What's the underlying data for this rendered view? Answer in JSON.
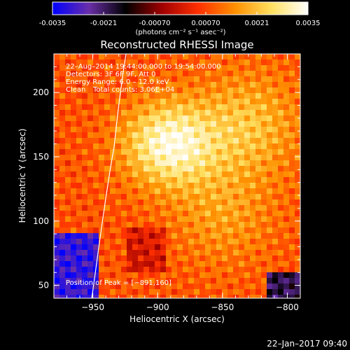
{
  "colorbar": {
    "ticks": [
      "-0.0035",
      "-0.0021",
      "-0.00070",
      "0.00070",
      "0.0021",
      "0.0035"
    ],
    "unit_label": "(photons cm⁻² s⁻¹ asec⁻²)",
    "range": [
      -0.0035,
      0.0035
    ]
  },
  "chart_data": {
    "type": "heatmap",
    "title": "Reconstructed RHESSI Image",
    "xlabel": "Heliocentric X (arcsec)",
    "ylabel": "Heliocentric Y (arcsec)",
    "xlim": [
      -980,
      -790
    ],
    "ylim": [
      40,
      230
    ],
    "x_ticks": [
      -950,
      -900,
      -850,
      -800
    ],
    "x_tick_labels": [
      "−950",
      "−900",
      "−850",
      "−800"
    ],
    "y_ticks": [
      50,
      100,
      150,
      200
    ],
    "y_tick_labels": [
      "50",
      "100",
      "150",
      "200"
    ],
    "peak": {
      "x": -891,
      "y": 160
    },
    "annotations": {
      "time_range": "22–Aug–2014 19:44:00.000 to 19:54:00.000",
      "detectors": "Detectors: 3F 6F 9F, Att 0",
      "energy_range": "Energy Range: 6.0 – 12.0 keV",
      "algorithm": "Clean",
      "total_counts": "Total counts: 3.06E+04",
      "peak_label": "Position of Peak = [−891,160]"
    },
    "limb": true,
    "colormap": "hot",
    "colormap_stops": [
      "#0000ff",
      "#6a2ea8",
      "#000000",
      "#a00000",
      "#ff3000",
      "#ff9000",
      "#ffe060",
      "#ffffff"
    ]
  },
  "footer": {
    "timestamp": "22–Jan–2017 09:40"
  }
}
